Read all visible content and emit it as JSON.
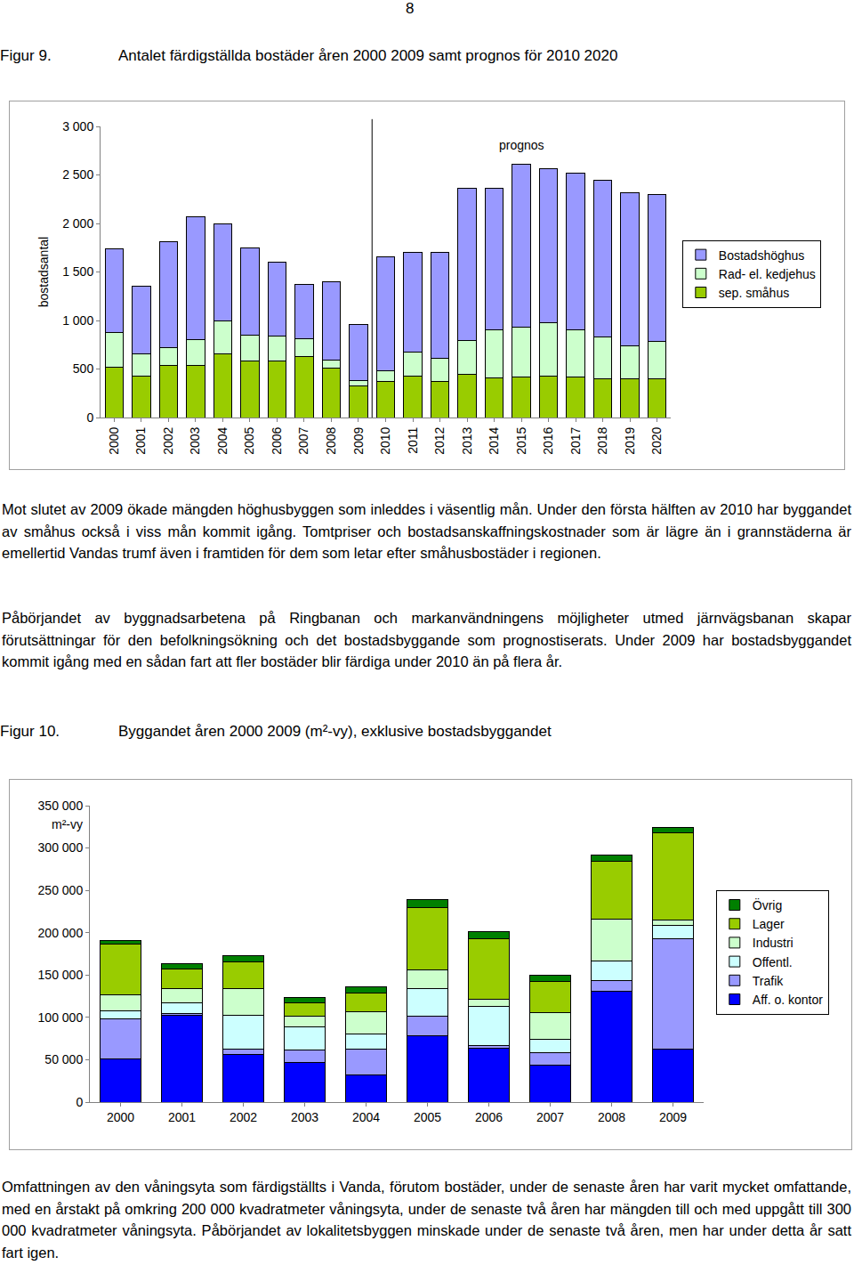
{
  "page_number": "8",
  "figure_9": {
    "label": "Figur 9.",
    "caption": "Antalet färdigställda bostäder åren 2000 2009 samt prognos för 2010 2020"
  },
  "text_after_figure_9": [
    "Mot slutet av 2009 ökade mängden höghusbyggen som inleddes i väsentlig mån. Under den första hälften av 2010 har byggandet av småhus också i viss mån kommit igång. Tomtpriser och bostadsanskaffningskostnader som är lägre än i grannstäderna är emellertid Vandas trumf även i framtiden för dem som letar efter småhusbostäder i regionen.",
    "Påbörjandet av byggnadsarbetena på Ringbanan och markanvändningens möjligheter utmed järnvägsbanan skapar förutsättningar för den befolkningsökning och det bostadsbyggande som prognostiserats. Under 2009 har bostadsbyggandet kommit igång med en sådan fart att fler bostäder blir färdiga under 2010 än på flera år."
  ],
  "figure_10": {
    "label": "Figur 10.",
    "caption": "Byggandet åren 2000 2009 (m²-vy), exklusive bostadsbyggandet"
  },
  "text_after_figure_10": [
    "Omfattningen av den våningsyta som färdigställts i Vanda, förutom bostäder, under de senaste åren har varit mycket omfattande, med en årstakt på omkring 200 000 kvadratmeter våningsyta, under de senaste två åren har mängden till och med uppgått till 300 000 kvadratmeter våningsyta. Påbörjandet av lokalitetsbyggen minskade under de senaste två åren, men har under detta år satt fart igen."
  ],
  "chart_data": [
    {
      "type": "bar",
      "stacked": true,
      "ylabel": "bostadsantal",
      "categories": [
        "2000",
        "2001",
        "2002",
        "2003",
        "2004",
        "2005",
        "2006",
        "2007",
        "2008",
        "2009",
        "2010",
        "2011",
        "2012",
        "2013",
        "2014",
        "2015",
        "2016",
        "2017",
        "2018",
        "2019",
        "2020"
      ],
      "series": [
        {
          "name": "sep. småhus",
          "color": "#99cc00",
          "values": [
            520,
            425,
            535,
            535,
            655,
            580,
            580,
            630,
            510,
            325,
            370,
            425,
            370,
            445,
            405,
            415,
            425,
            415,
            400,
            400,
            400
          ]
        },
        {
          "name": "Rad- el. kedjehus",
          "color": "#ccffcc",
          "values": [
            360,
            230,
            185,
            270,
            340,
            270,
            260,
            185,
            80,
            55,
            110,
            250,
            240,
            350,
            500,
            515,
            555,
            490,
            430,
            340,
            385
          ]
        },
        {
          "name": "Bostadshöghus",
          "color": "#9999ff",
          "values": [
            860,
            695,
            1090,
            1265,
            1000,
            900,
            765,
            555,
            810,
            580,
            1180,
            1030,
            1090,
            1570,
            1460,
            1680,
            1580,
            1615,
            1615,
            1580,
            1515
          ]
        }
      ],
      "ylim": [
        0,
        3000
      ],
      "yticks": [
        0,
        500,
        {
          "value": 1000,
          "label": "1 000"
        },
        {
          "value": 1500,
          "label": "1 500"
        },
        {
          "value": 2000,
          "label": "2 000"
        },
        {
          "value": 2500,
          "label": "2 500"
        },
        {
          "value": 3000,
          "label": "3 000"
        }
      ],
      "grid": false,
      "legend": "right",
      "annotations": [
        {
          "text": "prognos",
          "x": "2010"
        }
      ]
    },
    {
      "type": "bar",
      "stacked": true,
      "ylabel": "m²-vy",
      "categories": [
        "2000",
        "2001",
        "2002",
        "2003",
        "2004",
        "2005",
        "2006",
        "2007",
        "2008",
        "2009"
      ],
      "series": [
        {
          "name": "Aff. o. kontor",
          "color": "#0000ff",
          "values": [
            51000,
            102000,
            56000,
            47000,
            32000,
            78000,
            64000,
            44000,
            131000,
            63000
          ]
        },
        {
          "name": "Trafik",
          "color": "#9999ff",
          "values": [
            47000,
            3000,
            7000,
            15000,
            31000,
            23000,
            3000,
            14500,
            12000,
            130000
          ]
        },
        {
          "name": "Offentl.",
          "color": "#ccffff",
          "values": [
            10000,
            12000,
            39000,
            27000,
            17000,
            33000,
            46000,
            15500,
            24000,
            16000
          ]
        },
        {
          "name": "Industri",
          "color": "#ccffcc",
          "values": [
            19000,
            17000,
            32000,
            12000,
            27000,
            22000,
            8000,
            31500,
            49000,
            6000
          ]
        },
        {
          "name": "Lager",
          "color": "#99cc00",
          "values": [
            60000,
            23000,
            32000,
            16000,
            22000,
            74000,
            72000,
            36500,
            68000,
            103000
          ]
        },
        {
          "name": "Övrig",
          "color": "#008000",
          "values": [
            4000,
            6000,
            7000,
            7000,
            7000,
            9000,
            8000,
            8000,
            7500,
            6000
          ]
        }
      ],
      "ylim": [
        0,
        350000
      ],
      "yticks": [
        0,
        {
          "value": 50000,
          "label": "50 000"
        },
        {
          "value": 100000,
          "label": "100 000"
        },
        {
          "value": 150000,
          "label": "150 000"
        },
        {
          "value": 200000,
          "label": "200 000"
        },
        {
          "value": 250000,
          "label": "250 000"
        },
        {
          "value": 300000,
          "label": "300 000"
        },
        {
          "value": 350000,
          "label": "350 000"
        }
      ],
      "grid": false,
      "legend": "right"
    }
  ]
}
